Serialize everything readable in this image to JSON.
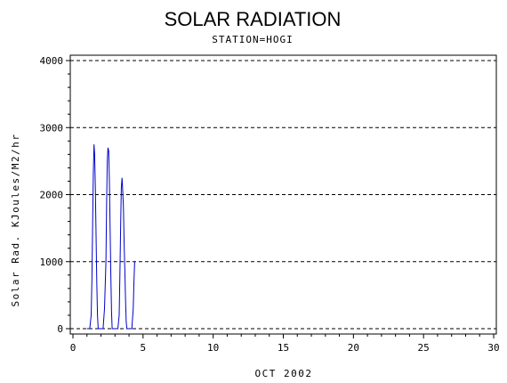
{
  "chart_data": {
    "type": "line",
    "title": "SOLAR RADIATION",
    "subtitle": "STATION=HOGI",
    "xlabel": "OCT 2002",
    "ylabel": "Solar Rad. KJoules/M2/hr",
    "xlim": [
      0,
      30
    ],
    "ylim": [
      0,
      4000
    ],
    "xticks": [
      0,
      5,
      10,
      15,
      20,
      25,
      30
    ],
    "yticks": [
      0,
      1000,
      2000,
      3000,
      4000
    ],
    "grid": "horizontal dashed",
    "series": [
      {
        "color": "#0000cc",
        "x": [
          1.0,
          1.2,
          1.3,
          1.35,
          1.4,
          1.45,
          1.5,
          1.55,
          1.6,
          1.65,
          1.7,
          1.75,
          1.8,
          1.85,
          1.9,
          2.0,
          2.15,
          2.25,
          2.35,
          2.4,
          2.45,
          2.5,
          2.55,
          2.6,
          2.65,
          2.7,
          2.75,
          2.8,
          2.85,
          3.0,
          3.2,
          3.3,
          3.35,
          3.4,
          3.45,
          3.5,
          3.55,
          3.6,
          3.65,
          3.7,
          3.75,
          3.8,
          3.85,
          4.0,
          4.2,
          4.3,
          4.35,
          4.4
        ],
        "y": [
          0,
          0,
          200,
          700,
          1500,
          2300,
          2750,
          2600,
          2100,
          1400,
          700,
          200,
          0,
          0,
          0,
          0,
          0,
          300,
          1000,
          1800,
          2500,
          2700,
          2650,
          2200,
          1500,
          800,
          250,
          0,
          0,
          0,
          0,
          200,
          800,
          1500,
          2100,
          2250,
          2050,
          1800,
          1300,
          900,
          450,
          100,
          0,
          0,
          0,
          300,
          700,
          1000
        ]
      }
    ]
  }
}
